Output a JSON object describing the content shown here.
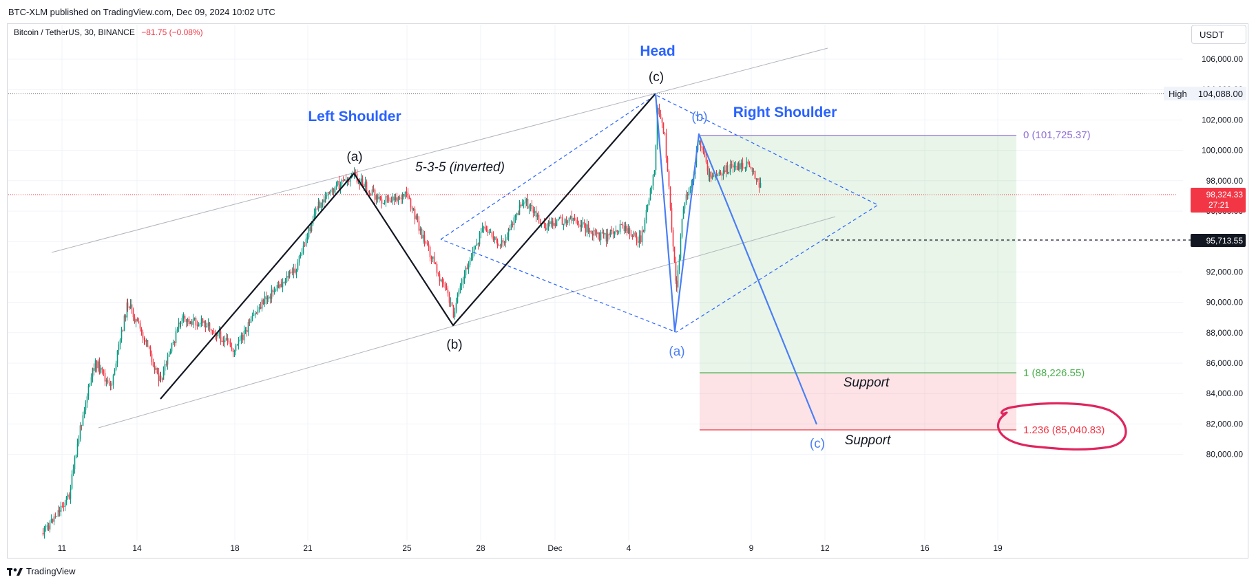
{
  "header": {
    "published": "BTC-XLM published on TradingView.com, Dec 09, 2024 10:02 UTC"
  },
  "symbol": {
    "name": "Bitcoin / TetherUS, 30, BINANCE",
    "change": "−81.75 (−0.08%)"
  },
  "currency": "USDT",
  "footer": {
    "brand": "TradingView"
  },
  "price_axis": {
    "ticks": [
      "106,000.00",
      "104,000.00",
      "102,000.00",
      "100,000.00",
      "98,000.00",
      "96,000.00",
      "94,000.00",
      "92,000.00",
      "90,000.00",
      "88,000.00",
      "86,000.00",
      "84,000.00",
      "82,000.00",
      "80,000.00"
    ],
    "high_label": "High",
    "high_value": "104,088.00",
    "last_price": "98,324.33",
    "countdown": "27:21",
    "marker_price": "95,713.55"
  },
  "time_axis": {
    "ticks": [
      "11",
      "14",
      "18",
      "21",
      "25",
      "28",
      "Dec",
      "4",
      "9",
      "12",
      "16",
      "19"
    ]
  },
  "annotations": {
    "head": "Head",
    "left_shoulder": "Left Shoulder",
    "right_shoulder": "Right Shoulder",
    "wave_a_left": "(a)",
    "wave_b_left": "(b)",
    "wave_c_head": "(c)",
    "wave_a_right": "(a)",
    "wave_b_right": "(b)",
    "wave_c_right": "(c)",
    "pattern": "5-3-5 (inverted)",
    "support_1": "Support",
    "support_2": "Support",
    "fib_0": "0 (101,725.37)",
    "fib_1": "1 (88,226.55)",
    "fib_1236": "1.236 (85,040.83)"
  },
  "colors": {
    "up": "#089981",
    "down": "#f23645",
    "blue_label": "#2962ff",
    "wave_blue": "#4a7ef5",
    "fib_0": "#8e6fd6",
    "fib_1": "#4caf50",
    "fib_1236": "#f23645",
    "circle": "#e0245e"
  }
}
